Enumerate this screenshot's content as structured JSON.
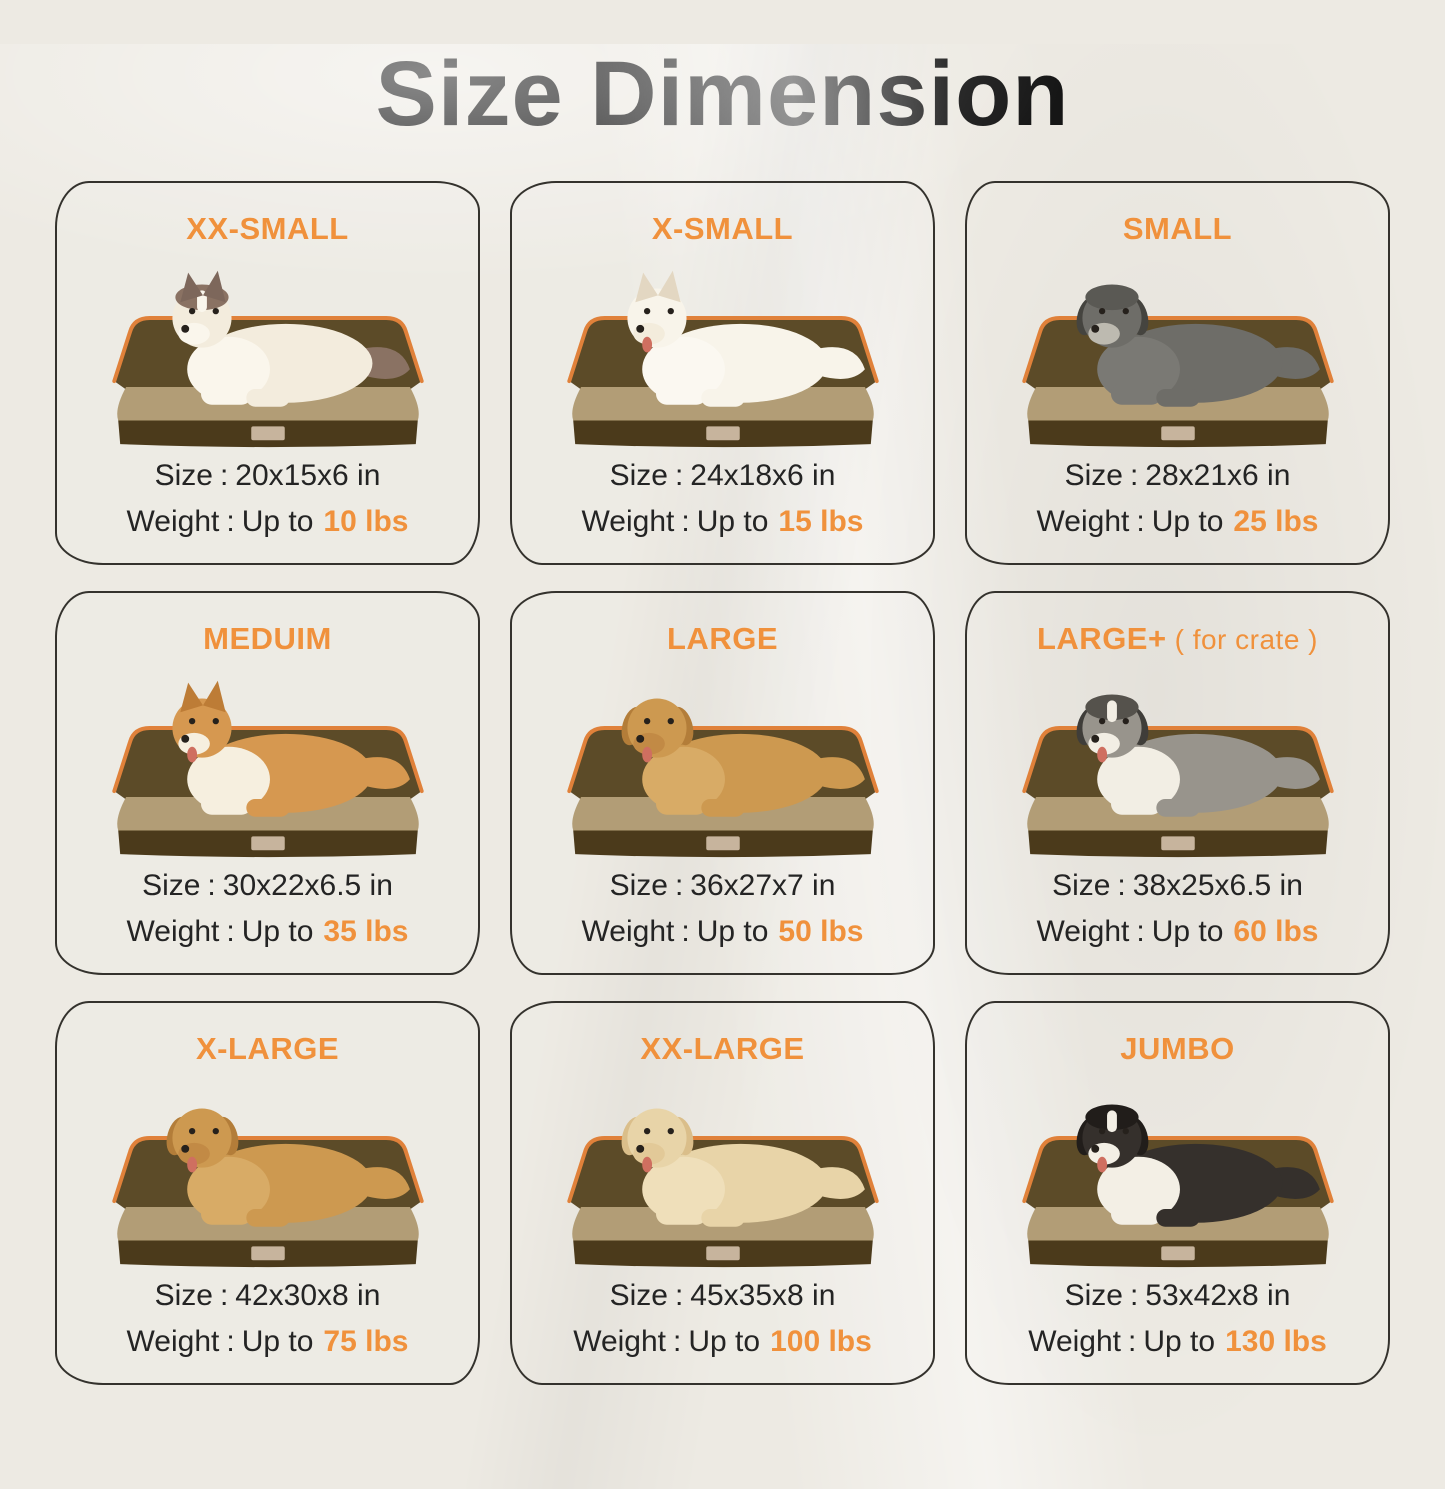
{
  "title": "Size Dimension",
  "labels": {
    "size": "Size",
    "weight": "Weight",
    "separator": ":",
    "up_to": "Up to"
  },
  "colors": {
    "accent_orange": "#F0913C",
    "title_black": "#161616",
    "background_cream": "#EDEAE3",
    "card_border": "#34322D",
    "bed_bolster": "#5C4B28",
    "bed_mattress": "#B29D76",
    "bed_base": "#4B3A1B",
    "bed_piping": "#E0813A"
  },
  "cards": [
    {
      "label": "XX-SMALL",
      "note": "",
      "pet": "ragdoll-cat",
      "size": "20x15x6 in",
      "weight": "10 lbs"
    },
    {
      "label": "X-SMALL",
      "note": "",
      "pet": "pomeranian",
      "size": "24x18x6 in",
      "weight": "15 lbs"
    },
    {
      "label": "SMALL",
      "note": "",
      "pet": "schnauzer",
      "size": "28x21x6 in",
      "weight": "25 lbs"
    },
    {
      "label": "MEDUIM",
      "note": "",
      "pet": "corgi",
      "size": "30x22x6.5 in",
      "weight": "35 lbs"
    },
    {
      "label": "LARGE",
      "note": "",
      "pet": "golden-retriever",
      "size": "36x27x7 in",
      "weight": "50 lbs"
    },
    {
      "label": "LARGE+",
      "note": "( for crate )",
      "pet": "australian-shepherd",
      "size": "38x25x6.5 in",
      "weight": "60 lbs"
    },
    {
      "label": "X-LARGE",
      "note": "",
      "pet": "golden-retriever",
      "size": "42x30x8 in",
      "weight": "75 lbs"
    },
    {
      "label": "XX-LARGE",
      "note": "",
      "pet": "labrador",
      "size": "45x35x8 in",
      "weight": "100 lbs"
    },
    {
      "label": "JUMBO",
      "note": "",
      "pet": "bernese-mountain-dog",
      "size": "53x42x8 in",
      "weight": "130 lbs"
    }
  ]
}
